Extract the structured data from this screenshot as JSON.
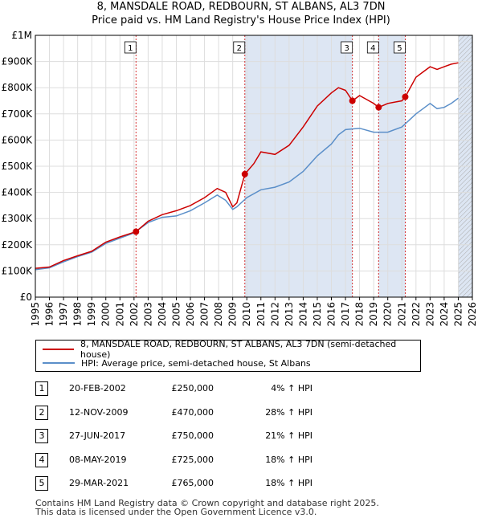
{
  "title": "8, MANSDALE ROAD, REDBOURN, ST ALBANS, AL3 7DN",
  "subtitle": "Price paid vs. HM Land Registry's House Price Index (HPI)",
  "colors": {
    "property": "#cc0000",
    "hpi": "#5b8fc9",
    "shade": "#dde6f3",
    "grid": "#dddddd"
  },
  "chart_data": {
    "type": "line",
    "xlim": [
      1995,
      2026
    ],
    "ylim": [
      0,
      1000000
    ],
    "y_ticks": [
      {
        "v": 0,
        "label": "£0"
      },
      {
        "v": 100000,
        "label": "£100K"
      },
      {
        "v": 200000,
        "label": "£200K"
      },
      {
        "v": 300000,
        "label": "£300K"
      },
      {
        "v": 400000,
        "label": "£400K"
      },
      {
        "v": 500000,
        "label": "£500K"
      },
      {
        "v": 600000,
        "label": "£600K"
      },
      {
        "v": 700000,
        "label": "£700K"
      },
      {
        "v": 800000,
        "label": "£800K"
      },
      {
        "v": 900000,
        "label": "£900K"
      },
      {
        "v": 1000000,
        "label": "£1M"
      }
    ],
    "x_ticks": [
      "1995",
      "1996",
      "1997",
      "1998",
      "1999",
      "2000",
      "2001",
      "2002",
      "2003",
      "2004",
      "2005",
      "2006",
      "2007",
      "2008",
      "2009",
      "2010",
      "2011",
      "2012",
      "2013",
      "2014",
      "2015",
      "2016",
      "2017",
      "2018",
      "2019",
      "2020",
      "2021",
      "2022",
      "2023",
      "2024",
      "2025",
      "2026"
    ],
    "shaded_ranges": [
      [
        2009.86,
        2017.49
      ],
      [
        2019.35,
        2021.24
      ],
      [
        2025.0,
        2026.0
      ]
    ],
    "hatched_from": 2025.0,
    "series": [
      {
        "name": "8, MANSDALE ROAD, REDBOURN, ST ALBANS, AL3 7DN (semi-detached house)",
        "key": "property",
        "x": [
          1995,
          1996,
          1997,
          1998,
          1999,
          2000,
          2001,
          2002.14,
          2003,
          2004,
          2005,
          2006,
          2007,
          2007.9,
          2008.5,
          2009,
          2009.3,
          2009.86,
          2010.5,
          2011,
          2012,
          2013,
          2014,
          2015,
          2016,
          2016.5,
          2017,
          2017.49,
          2018,
          2018.5,
          2019,
          2019.35,
          2020,
          2021,
          2021.24,
          2022,
          2022.5,
          2023,
          2023.5,
          2024,
          2024.5,
          2025.0
        ],
        "values": [
          110000,
          115000,
          140000,
          158000,
          175000,
          210000,
          230000,
          250000,
          290000,
          315000,
          330000,
          350000,
          380000,
          415000,
          400000,
          345000,
          360000,
          470000,
          510000,
          555000,
          545000,
          580000,
          650000,
          730000,
          780000,
          800000,
          790000,
          750000,
          770000,
          755000,
          740000,
          725000,
          740000,
          750000,
          765000,
          840000,
          860000,
          880000,
          870000,
          880000,
          890000,
          895000
        ]
      },
      {
        "name": "HPI: Average price, semi-detached house, St Albans",
        "key": "hpi",
        "x": [
          1995,
          1996,
          1997,
          1998,
          1999,
          2000,
          2001,
          2002,
          2003,
          2004,
          2005,
          2006,
          2007,
          2007.9,
          2008.5,
          2009,
          2009.3,
          2010,
          2011,
          2012,
          2013,
          2014,
          2015,
          2016,
          2016.5,
          2017,
          2018,
          2019,
          2020,
          2021,
          2022,
          2022.5,
          2023,
          2023.5,
          2024,
          2024.5,
          2025.0
        ],
        "values": [
          105000,
          112000,
          135000,
          155000,
          172000,
          205000,
          225000,
          245000,
          285000,
          305000,
          310000,
          330000,
          360000,
          390000,
          370000,
          335000,
          345000,
          380000,
          410000,
          420000,
          440000,
          480000,
          540000,
          585000,
          620000,
          640000,
          645000,
          630000,
          630000,
          650000,
          700000,
          720000,
          740000,
          720000,
          725000,
          740000,
          760000
        ]
      }
    ],
    "transactions": [
      {
        "n": "1",
        "x": 2002.14,
        "value": 250000,
        "date": "20-FEB-2002",
        "price": "£250,000",
        "hpi": "4% ↑ HPI"
      },
      {
        "n": "2",
        "x": 2009.86,
        "value": 470000,
        "date": "12-NOV-2009",
        "price": "£470,000",
        "hpi": "28% ↑ HPI"
      },
      {
        "n": "3",
        "x": 2017.49,
        "value": 750000,
        "date": "27-JUN-2017",
        "price": "£750,000",
        "hpi": "21% ↑ HPI"
      },
      {
        "n": "4",
        "x": 2019.35,
        "value": 725000,
        "date": "08-MAY-2019",
        "price": "£725,000",
        "hpi": "18% ↑ HPI"
      },
      {
        "n": "5",
        "x": 2021.24,
        "value": 765000,
        "date": "29-MAR-2021",
        "price": "£765,000",
        "hpi": "18% ↑ HPI"
      }
    ]
  },
  "legend": {
    "property_label": "8, MANSDALE ROAD, REDBOURN, ST ALBANS, AL3 7DN (semi-detached house)",
    "hpi_label": "HPI: Average price, semi-detached house, St Albans"
  },
  "footer": {
    "line1": "Contains HM Land Registry data © Crown copyright and database right 2025.",
    "line2": "This data is licensed under the Open Government Licence v3.0."
  }
}
